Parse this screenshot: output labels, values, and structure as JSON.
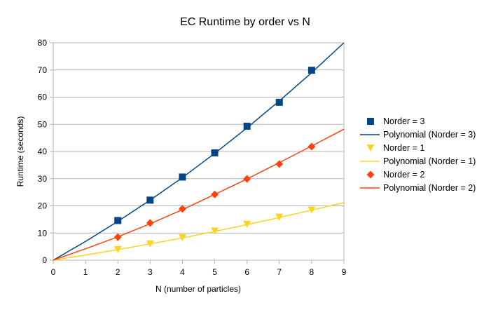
{
  "chart_data": {
    "type": "scatter",
    "title": "EC Runtime by order vs N",
    "xlabel": "N (number of particles)",
    "ylabel": "Runtime (seconds)",
    "xlim": [
      0,
      9
    ],
    "ylim": [
      0,
      80
    ],
    "xticks": [
      "0",
      "1",
      "2",
      "3",
      "4",
      "5",
      "6",
      "7",
      "8",
      "9"
    ],
    "yticks": [
      "0",
      "10",
      "20",
      "30",
      "40",
      "50",
      "60",
      "70",
      "80"
    ],
    "grid": "horizontal",
    "legend_position": "right",
    "series": [
      {
        "name": "Norder  = 3",
        "marker": "square",
        "color": "#004586",
        "x": [
          2,
          3,
          4,
          5,
          6,
          7,
          8
        ],
        "y": [
          14.6,
          22.1,
          30.6,
          39.5,
          49.3,
          58.1,
          69.9
        ],
        "trend_name": "Polynomial (Norder  = 3)",
        "trend_points": [
          [
            0,
            0
          ],
          [
            1,
            6.9
          ],
          [
            2,
            14.3
          ],
          [
            3,
            22.1
          ],
          [
            4,
            30.4
          ],
          [
            5,
            39.3
          ],
          [
            6,
            48.7
          ],
          [
            7,
            58.6
          ],
          [
            8,
            69.0
          ],
          [
            9,
            80.0
          ]
        ]
      },
      {
        "name": "Norder  = 1",
        "marker": "triangle-down",
        "color": "#ffd320",
        "x": [
          2,
          3,
          4,
          5,
          6,
          7,
          8
        ],
        "y": [
          3.9,
          6.0,
          8.3,
          10.7,
          13.2,
          15.8,
          18.5
        ],
        "trend_name": "Polynomial (Norder  = 1)",
        "trend_points": [
          [
            0,
            0
          ],
          [
            1,
            1.9
          ],
          [
            2,
            3.9
          ],
          [
            3,
            6.0
          ],
          [
            4,
            8.2
          ],
          [
            5,
            10.6
          ],
          [
            6,
            13.1
          ],
          [
            7,
            15.7
          ],
          [
            8,
            18.4
          ],
          [
            9,
            21.2
          ]
        ]
      },
      {
        "name": "Norder  = 2",
        "marker": "diamond",
        "color": "#ff420e",
        "x": [
          2,
          3,
          4,
          5,
          6,
          7,
          8
        ],
        "y": [
          8.5,
          13.7,
          18.9,
          24.2,
          29.9,
          35.4,
          41.8
        ],
        "trend_name": "Polynomial (Norder  = 2)",
        "trend_points": [
          [
            0,
            0
          ],
          [
            1,
            4.2
          ],
          [
            2,
            8.6
          ],
          [
            3,
            13.4
          ],
          [
            4,
            18.6
          ],
          [
            5,
            24.2
          ],
          [
            6,
            29.9
          ],
          [
            7,
            35.9
          ],
          [
            8,
            42.0
          ],
          [
            9,
            48.2
          ]
        ]
      }
    ]
  }
}
